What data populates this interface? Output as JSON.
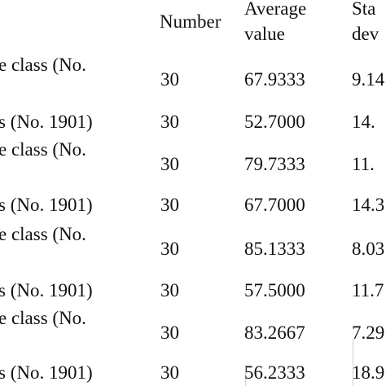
{
  "table": {
    "headers": {
      "number": "Number",
      "average": [
        "Average",
        "value"
      ],
      "std": [
        "Sta",
        "dev"
      ]
    },
    "rows": [
      {
        "label": [
          "e class (No.",
          ""
        ],
        "number": "30",
        "average": "67.9333",
        "std": "9.14"
      },
      {
        "label": [
          "s (No. 1901)"
        ],
        "number": "30",
        "average": "52.7000",
        "std": "14."
      },
      {
        "label": [
          "e class (No.",
          ""
        ],
        "number": "30",
        "average": "79.7333",
        "std": "11."
      },
      {
        "label": [
          "s (No. 1901)"
        ],
        "number": "30",
        "average": "67.7000",
        "std": "14.3"
      },
      {
        "label": [
          "e class (No.",
          ""
        ],
        "number": "30",
        "average": "85.1333",
        "std": "8.03"
      },
      {
        "label": [
          "s (No. 1901)"
        ],
        "number": "30",
        "average": "57.5000",
        "std": "11.7"
      },
      {
        "label": [
          "e class (No.",
          ""
        ],
        "number": "30",
        "average": "83.2667",
        "std": "7.29"
      },
      {
        "label": [
          "s (No. 1901)"
        ],
        "number": "30",
        "average": "56.2333",
        "std": "18.9"
      }
    ]
  }
}
